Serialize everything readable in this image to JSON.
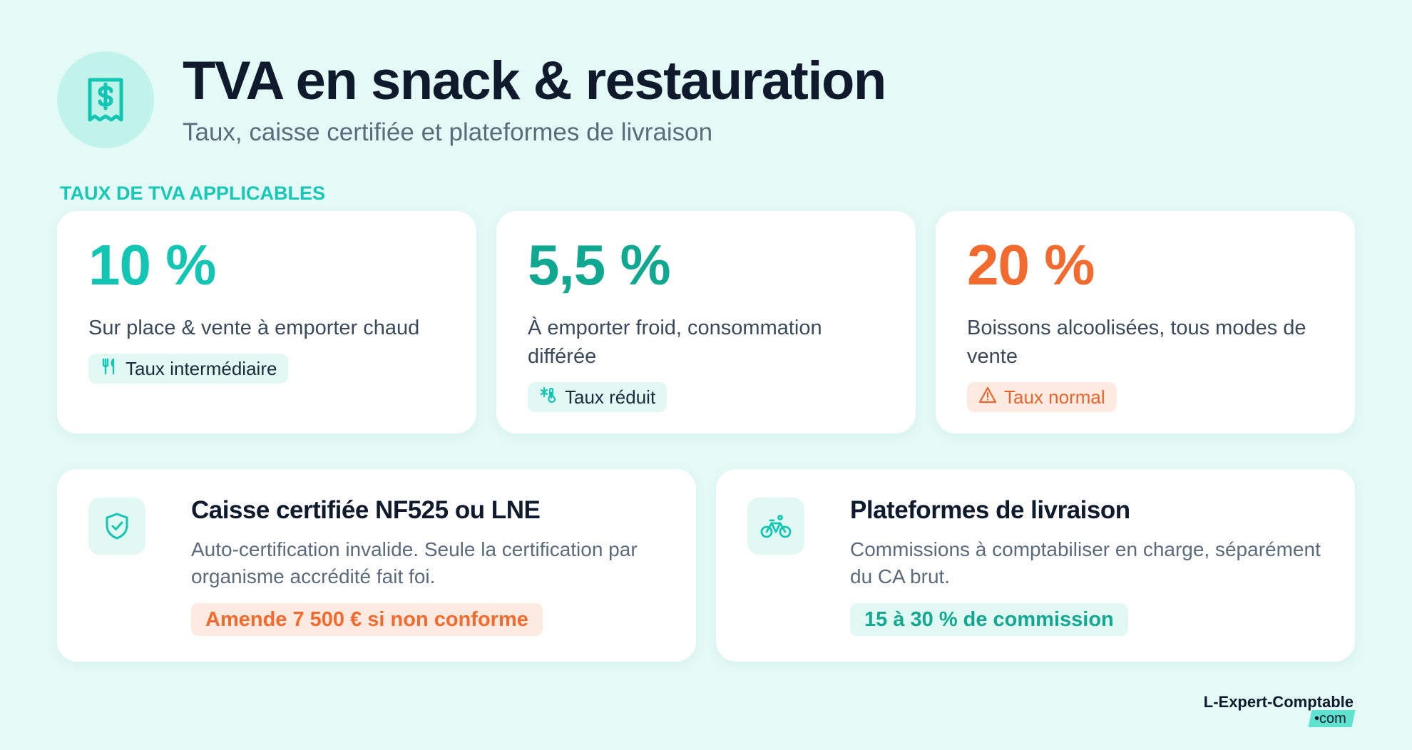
{
  "header": {
    "icon": "receipt-dollar-icon",
    "title": "TVA en snack & restauration",
    "subtitle": "Taux, caisse certifiée et plateformes de livraison"
  },
  "section_label": "TAUX DE TVA APPLICABLES",
  "rates": [
    {
      "value": "10 %",
      "description": "Sur place & vente à emporter chaud",
      "badge": "Taux intermédiaire",
      "badge_icon": "utensils-icon",
      "color": "#13c6b3"
    },
    {
      "value": "5,5 %",
      "description": "À emporter froid, consommation différée",
      "badge": "Taux réduit",
      "badge_icon": "snowflake-thermometer-icon",
      "color": "#10a890"
    },
    {
      "value": "20 %",
      "description": "Boissons alcoolisées, tous modes de vente",
      "badge": "Taux normal",
      "badge_icon": "warning-icon",
      "color": "#f26a2e"
    }
  ],
  "info_cards": [
    {
      "icon": "shield-check-icon",
      "title": "Caisse certifiée NF525 ou LNE",
      "text": "Auto-certification invalide. Seule la certification par organisme accrédité fait foi.",
      "pill": "Amende 7 500 € si non conforme"
    },
    {
      "icon": "bicycle-icon",
      "title": "Plateformes de livraison",
      "text": "Commissions à comptabiliser en charge, séparément du CA brut.",
      "pill": "15 à 30 % de commission"
    }
  ],
  "brand": {
    "name": "L-Expert-Comptable",
    "suffix": "•com"
  }
}
